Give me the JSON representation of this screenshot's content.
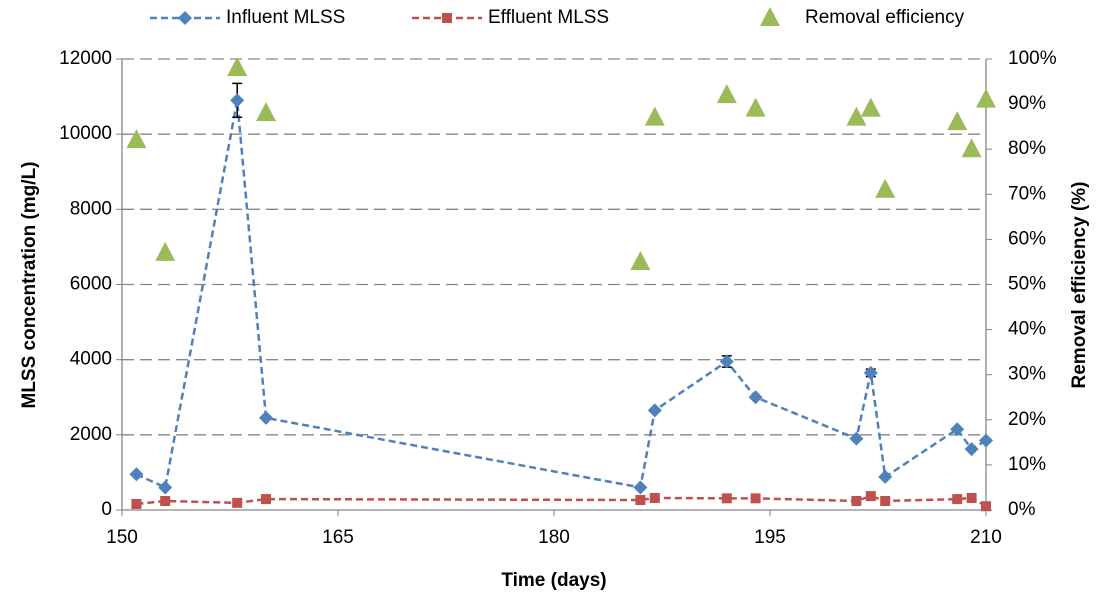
{
  "chart_data": {
    "type": "line",
    "x_label": "Time (days)",
    "y_label": "MLSS  concentration (mg/L)",
    "y2_label": "Removal efficiency (%)",
    "x": [
      151,
      153,
      158,
      160,
      186,
      187,
      192,
      194,
      201,
      202,
      203,
      208,
      209,
      210
    ],
    "series": [
      {
        "name": "Influent MLSS",
        "color": "#4f81bd",
        "marker": "diamond",
        "values": [
          950,
          600,
          10900,
          2450,
          600,
          2650,
          3950,
          3000,
          1900,
          3650,
          880,
          2150,
          1620,
          1850
        ],
        "errors": [
          null,
          null,
          450,
          null,
          null,
          null,
          150,
          null,
          null,
          100,
          null,
          null,
          null,
          null
        ]
      },
      {
        "name": "Effluent MLSS",
        "color": "#c0504d",
        "marker": "square",
        "values": [
          160,
          240,
          190,
          290,
          266,
          320,
          310,
          310,
          240,
          370,
          240,
          290,
          320,
          100
        ]
      },
      {
        "name": "Removal efficiency",
        "color": "#9bbb59",
        "marker": "triangle",
        "axis": "y2",
        "line": false,
        "values": [
          82,
          57,
          98,
          88,
          55,
          87,
          92,
          89,
          87,
          89,
          71,
          86,
          80,
          91
        ]
      }
    ],
    "xlim": [
      150,
      210
    ],
    "xticks": [
      150,
      165,
      180,
      195,
      210
    ],
    "ylim": [
      0,
      12000
    ],
    "yticks": [
      0,
      2000,
      4000,
      6000,
      8000,
      10000,
      12000
    ],
    "y2lim": [
      0,
      100
    ],
    "y2ticks": [
      {
        "value": 0,
        "label": "0%"
      },
      {
        "value": 10,
        "label": "10%"
      },
      {
        "value": 20,
        "label": "20%"
      },
      {
        "value": 30,
        "label": "30%"
      },
      {
        "value": 40,
        "label": "40%"
      },
      {
        "value": 50,
        "label": "50%"
      },
      {
        "value": 60,
        "label": "60%"
      },
      {
        "value": 70,
        "label": "70%"
      },
      {
        "value": 80,
        "label": "80%"
      },
      {
        "value": 90,
        "label": "90%"
      },
      {
        "value": 100,
        "label": "100%"
      }
    ],
    "grid": true,
    "legend": "top"
  }
}
